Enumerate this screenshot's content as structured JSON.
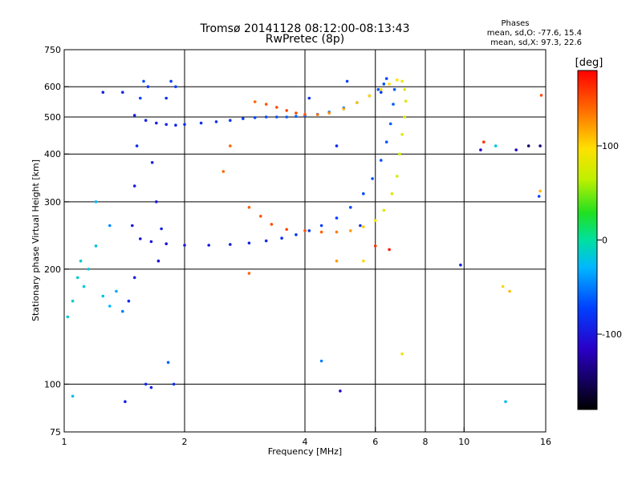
{
  "title_line1": "Tromsø 20141128 08:12:00-08:13:43",
  "title_line2": "RwPretec (8p)",
  "stats": {
    "heading": "Phases",
    "line_o": "mean, sd,O: -77.6, 15.4",
    "line_x": "mean, sd,X:  97.3, 22.6"
  },
  "colorbar": {
    "unit_label": "[deg]",
    "min": -180,
    "max": 180,
    "ticks": [
      {
        "value": 100,
        "label": "100"
      },
      {
        "value": 0,
        "label": "0"
      },
      {
        "value": -100,
        "label": "-100"
      }
    ]
  },
  "chart_data": {
    "type": "scatter",
    "title": "Tromsø 20141128 08:12:00-08:13:43 RwPretec (8p)",
    "xlabel": "Frequency [MHz]",
    "ylabel": "Stationary phase Virtual Height [km]",
    "xscale": "log",
    "yscale": "log",
    "xlim": [
      1,
      16
    ],
    "ylim": [
      75,
      750
    ],
    "xticks": [
      {
        "value": 1,
        "label": "1"
      },
      {
        "value": 2,
        "label": "2"
      },
      {
        "value": 4,
        "label": "4"
      },
      {
        "value": 6,
        "label": "6"
      },
      {
        "value": 8,
        "label": "8"
      },
      {
        "value": 10,
        "label": "10"
      },
      {
        "value": 16,
        "label": "16"
      }
    ],
    "yticks": [
      {
        "value": 75,
        "label": "75"
      },
      {
        "value": 100,
        "label": "100"
      },
      {
        "value": 200,
        "label": "200"
      },
      {
        "value": 300,
        "label": "300"
      },
      {
        "value": 400,
        "label": "400"
      },
      {
        "value": 500,
        "label": "500"
      },
      {
        "value": 600,
        "label": "600"
      },
      {
        "value": 750,
        "label": "750"
      }
    ],
    "vgrid": [
      2,
      4,
      6,
      8,
      10
    ],
    "hgrid": [
      100,
      200,
      300,
      400,
      500,
      600
    ],
    "grid": true,
    "color_scale": "phase in degrees, rainbow from black (-180) through blue, cyan, green, yellow to red (180)",
    "series": [
      {
        "values": [
          [
            1.5,
            505,
            -100
          ],
          [
            1.6,
            490,
            -98
          ],
          [
            1.7,
            482,
            -97
          ],
          [
            1.8,
            478,
            -96
          ],
          [
            1.9,
            476,
            -95
          ],
          [
            2.0,
            478,
            -93
          ],
          [
            2.2,
            482,
            -90
          ],
          [
            2.4,
            486,
            -88
          ],
          [
            2.6,
            490,
            -85
          ],
          [
            2.8,
            495,
            -82
          ],
          [
            3.0,
            498,
            -80
          ],
          [
            3.2,
            500,
            -78
          ],
          [
            3.4,
            500,
            -75
          ],
          [
            3.6,
            500,
            -72
          ],
          [
            3.8,
            502,
            -70
          ],
          [
            4.0,
            504,
            -68
          ],
          [
            4.3,
            508,
            -66
          ],
          [
            4.6,
            515,
            -65
          ],
          [
            5.0,
            528,
            -66
          ],
          [
            5.4,
            545,
            -70
          ],
          [
            5.8,
            568,
            -72
          ],
          [
            6.1,
            590,
            -74
          ],
          [
            6.3,
            610,
            -76
          ],
          [
            6.4,
            630,
            -78
          ]
        ]
      },
      {
        "values": [
          [
            1.55,
            240,
            -110
          ],
          [
            1.65,
            236,
            -108
          ],
          [
            1.8,
            233,
            -106
          ],
          [
            2.0,
            231,
            -105
          ],
          [
            2.3,
            231,
            -103
          ],
          [
            2.6,
            232,
            -101
          ],
          [
            2.9,
            234,
            -98
          ],
          [
            3.2,
            237,
            -95
          ],
          [
            3.5,
            241,
            -92
          ],
          [
            3.8,
            246,
            -88
          ],
          [
            4.1,
            252,
            -85
          ],
          [
            4.4,
            260,
            -82
          ],
          [
            4.8,
            272,
            -80
          ],
          [
            5.2,
            290,
            -78
          ],
          [
            5.6,
            315,
            -76
          ],
          [
            5.9,
            345,
            -75
          ],
          [
            6.2,
            385,
            -74
          ],
          [
            6.4,
            430,
            -73
          ],
          [
            6.55,
            480,
            -72
          ],
          [
            6.65,
            540,
            -72
          ],
          [
            6.7,
            590,
            -73
          ]
        ]
      },
      {
        "values": [
          [
            3.0,
            548,
            140
          ],
          [
            3.2,
            540,
            145
          ],
          [
            3.4,
            530,
            150
          ],
          [
            3.6,
            520,
            152
          ],
          [
            3.8,
            512,
            150
          ],
          [
            4.0,
            508,
            145
          ],
          [
            4.3,
            507,
            135
          ],
          [
            4.6,
            512,
            125
          ],
          [
            5.0,
            525,
            115
          ],
          [
            5.4,
            545,
            105
          ],
          [
            5.8,
            568,
            100
          ],
          [
            6.2,
            590,
            98
          ],
          [
            6.5,
            610,
            97
          ],
          [
            6.8,
            625,
            96
          ],
          [
            7.0,
            620,
            90
          ],
          [
            7.1,
            590,
            85
          ],
          [
            7.15,
            550,
            82
          ],
          [
            7.1,
            500,
            80
          ],
          [
            7.0,
            450,
            78
          ],
          [
            6.9,
            400,
            77
          ],
          [
            6.8,
            350,
            76
          ],
          [
            6.6,
            315,
            78
          ],
          [
            6.3,
            285,
            82
          ],
          [
            6.0,
            268,
            90
          ],
          [
            5.6,
            258,
            105
          ],
          [
            5.2,
            252,
            120
          ],
          [
            4.8,
            250,
            132
          ],
          [
            4.4,
            250,
            142
          ],
          [
            4.0,
            252,
            148
          ],
          [
            3.6,
            254,
            152
          ],
          [
            3.3,
            262,
            150
          ],
          [
            3.1,
            275,
            146
          ],
          [
            2.9,
            290,
            142
          ]
        ]
      },
      {
        "values": [
          [
            1.02,
            150,
            -20
          ],
          [
            1.05,
            165,
            -18
          ],
          [
            1.08,
            190,
            -15
          ],
          [
            1.1,
            210,
            -22
          ],
          [
            1.12,
            180,
            -20
          ],
          [
            1.15,
            200,
            -25
          ],
          [
            1.2,
            230,
            -30
          ],
          [
            1.25,
            170,
            -35
          ],
          [
            1.3,
            160,
            -40
          ],
          [
            1.35,
            175,
            -45
          ],
          [
            1.4,
            155,
            -60
          ],
          [
            1.45,
            165,
            -95
          ],
          [
            1.5,
            190,
            -100
          ],
          [
            1.48,
            260,
            -105
          ],
          [
            1.5,
            330,
            -100
          ],
          [
            1.52,
            420,
            -90
          ],
          [
            1.55,
            560,
            -80
          ],
          [
            1.58,
            620,
            -75
          ],
          [
            1.62,
            600,
            -85
          ],
          [
            1.66,
            380,
            -100
          ],
          [
            1.7,
            300,
            -105
          ],
          [
            1.72,
            210,
            -110
          ],
          [
            1.75,
            255,
            -100
          ],
          [
            1.8,
            560,
            -90
          ],
          [
            1.85,
            620,
            -85
          ],
          [
            1.9,
            600,
            -80
          ],
          [
            1.6,
            100,
            -95
          ],
          [
            1.65,
            98,
            -100
          ],
          [
            1.82,
            114,
            -70
          ],
          [
            1.2,
            300,
            -40
          ],
          [
            1.3,
            260,
            -55
          ],
          [
            1.25,
            580,
            -100
          ],
          [
            1.4,
            580,
            -95
          ],
          [
            1.05,
            93,
            -30
          ],
          [
            1.42,
            90,
            -100
          ],
          [
            1.88,
            100,
            -90
          ],
          [
            5.1,
            620,
            -80
          ],
          [
            6.2,
            580,
            -85
          ],
          [
            4.8,
            420,
            -95
          ],
          [
            4.9,
            96,
            -120
          ],
          [
            4.8,
            210,
            120
          ],
          [
            5.6,
            210,
            100
          ],
          [
            2.5,
            360,
            140
          ],
          [
            2.6,
            420,
            140
          ],
          [
            2.9,
            195,
            140
          ],
          [
            6.0,
            230,
            160
          ],
          [
            6.5,
            225,
            170
          ],
          [
            9.8,
            205,
            -100
          ],
          [
            11.2,
            430,
            160
          ],
          [
            11.0,
            410,
            -120
          ],
          [
            12.0,
            420,
            -30
          ],
          [
            13.5,
            410,
            -120
          ],
          [
            14.5,
            420,
            -150
          ],
          [
            15.5,
            420,
            -140
          ],
          [
            15.4,
            310,
            -80
          ],
          [
            15.5,
            320,
            110
          ],
          [
            12.5,
            180,
            100
          ],
          [
            13.0,
            175,
            110
          ],
          [
            15.6,
            570,
            150
          ],
          [
            12.7,
            90,
            -30
          ],
          [
            7.0,
            120,
            90
          ],
          [
            4.4,
            115,
            -60
          ],
          [
            5.5,
            260,
            -90
          ],
          [
            4.1,
            560,
            -90
          ]
        ]
      }
    ]
  }
}
